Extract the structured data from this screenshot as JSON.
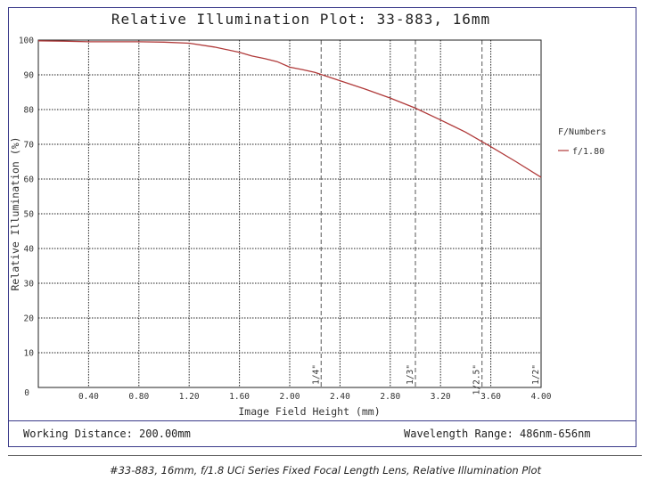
{
  "chart_data": {
    "type": "line",
    "title": "Relative Illumination Plot: 33-883, 16mm",
    "xlabel": "Image Field Height (mm)",
    "ylabel": "Relative Illumination (%)",
    "xlim": [
      0,
      4.0
    ],
    "ylim": [
      0,
      100
    ],
    "x_ticks": [
      "0.40",
      "0.80",
      "1.20",
      "1.60",
      "2.00",
      "2.40",
      "2.80",
      "3.20",
      "3.60",
      "4.00"
    ],
    "y_ticks": [
      "10",
      "20",
      "30",
      "40",
      "50",
      "60",
      "70",
      "80",
      "90",
      "100"
    ],
    "origin_label": "0",
    "grid": true,
    "legend_title": "F/Numbers",
    "legend_position": "right",
    "series": [
      {
        "name": "f/1.80",
        "color": "#b03a3a",
        "x": [
          0,
          0.2,
          0.4,
          0.8,
          1.0,
          1.2,
          1.4,
          1.6,
          1.7,
          1.8,
          1.9,
          2.0,
          2.1,
          2.2,
          2.4,
          2.6,
          2.8,
          3.0,
          3.2,
          3.4,
          3.6,
          3.8,
          4.0
        ],
        "y": [
          99.8,
          99.7,
          99.5,
          99.5,
          99.4,
          99.1,
          98.0,
          96.5,
          95.4,
          94.7,
          93.8,
          92.2,
          91.5,
          90.7,
          88.3,
          85.9,
          83.3,
          80.4,
          77.0,
          73.5,
          69.3,
          65.0,
          60.5
        ]
      }
    ],
    "sensor_markers": [
      {
        "label": "1/4\"",
        "x": 2.25
      },
      {
        "label": "1/3\"",
        "x": 3.0
      },
      {
        "label": "1/2.5\"",
        "x": 3.53
      },
      {
        "label": "1/2\"",
        "x": 4.0
      }
    ]
  },
  "footer": {
    "working_distance": "Working Distance: 200.00mm",
    "wavelength_range": "Wavelength Range: 486nm-656nm"
  },
  "caption": "#33-883, 16mm, f/1.8 UCi Series Fixed Focal Length Lens, Relative Illumination Plot"
}
